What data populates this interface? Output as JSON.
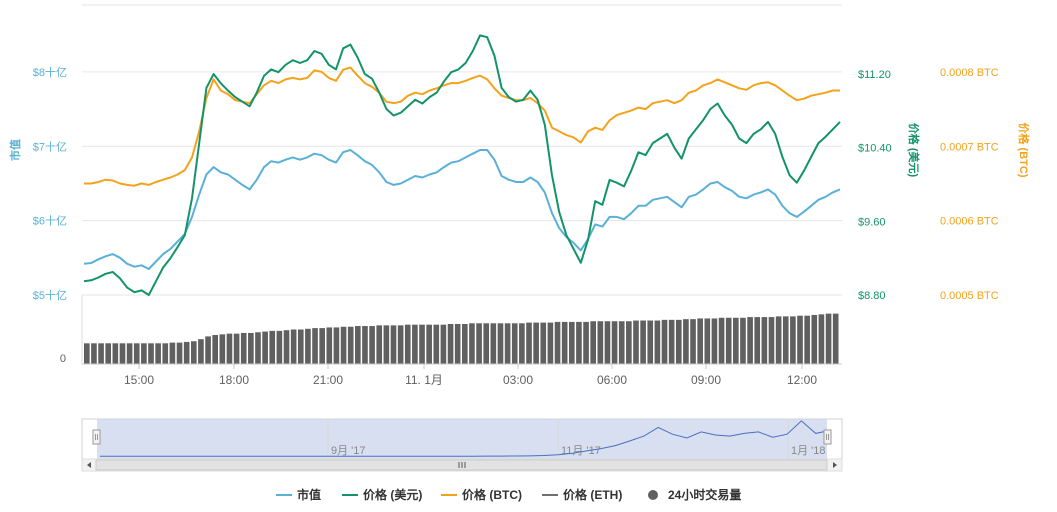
{
  "colors": {
    "market_cap": "#5ab0d6",
    "price_usd": "#13936a",
    "price_btc": "#f4a21b",
    "price_eth": "#707070",
    "volume": "#606060",
    "grid": "#e6e6e6",
    "navigator_fill": "#c9d4ec",
    "navigator_line": "#4a6fc0"
  },
  "chart_data": {
    "type": "line",
    "title": "",
    "x_ticks": [
      "15:00",
      "18:00",
      "21:00",
      "11. 1月",
      "03:00",
      "06:00",
      "09:00",
      "12:00"
    ],
    "axes": {
      "market_cap": {
        "title": "市值",
        "ticks": [
          "$5十亿",
          "$6十亿",
          "$7十亿",
          "$8十亿"
        ],
        "tick_values": [
          5,
          6,
          7,
          8
        ],
        "range": [
          5,
          8.9
        ],
        "unit": "十亿 USD"
      },
      "price_usd": {
        "title": "价格 (美元)",
        "ticks": [
          "$8.80",
          "$9.60",
          "$10.40",
          "$11.20"
        ],
        "tick_values": [
          8.8,
          9.6,
          10.4,
          11.2
        ],
        "range": [
          8.8,
          11.95
        ]
      },
      "price_btc": {
        "title": "价格 (BTC)",
        "ticks": [
          "0.0005 BTC",
          "0.0006 BTC",
          "0.0007 BTC",
          "0.0008 BTC"
        ],
        "tick_values": [
          0.0005,
          0.0006,
          0.0007,
          0.0008
        ],
        "range": [
          0.0005,
          0.00089
        ]
      },
      "volume": {
        "ticks": [
          "0"
        ]
      }
    },
    "series": [
      {
        "name": "市值",
        "key": "market_cap",
        "axis": "market_cap",
        "values": [
          5.42,
          5.43,
          5.48,
          5.52,
          5.55,
          5.5,
          5.42,
          5.38,
          5.4,
          5.35,
          5.45,
          5.55,
          5.62,
          5.72,
          5.82,
          6.05,
          6.35,
          6.62,
          6.72,
          6.65,
          6.62,
          6.55,
          6.48,
          6.42,
          6.55,
          6.72,
          6.8,
          6.78,
          6.82,
          6.85,
          6.82,
          6.85,
          6.9,
          6.88,
          6.82,
          6.78,
          6.92,
          6.95,
          6.88,
          6.8,
          6.75,
          6.65,
          6.52,
          6.48,
          6.5,
          6.55,
          6.6,
          6.58,
          6.62,
          6.65,
          6.72,
          6.78,
          6.8,
          6.85,
          6.9,
          6.95,
          6.95,
          6.82,
          6.6,
          6.55,
          6.52,
          6.52,
          6.58,
          6.52,
          6.38,
          6.1,
          5.9,
          5.78,
          5.7,
          5.6,
          5.75,
          5.95,
          5.92,
          6.05,
          6.05,
          6.02,
          6.1,
          6.2,
          6.2,
          6.28,
          6.3,
          6.32,
          6.25,
          6.18,
          6.32,
          6.35,
          6.42,
          6.5,
          6.52,
          6.45,
          6.4,
          6.32,
          6.3,
          6.35,
          6.38,
          6.42,
          6.35,
          6.2,
          6.1,
          6.05,
          6.12,
          6.2,
          6.28,
          6.32,
          6.38,
          6.42
        ]
      },
      {
        "name": "价格 (美元)",
        "key": "price_usd",
        "axis": "price_usd",
        "values": [
          8.95,
          8.96,
          8.99,
          9.03,
          9.05,
          8.98,
          8.88,
          8.83,
          8.85,
          8.8,
          8.95,
          9.1,
          9.2,
          9.32,
          9.45,
          9.85,
          10.45,
          11.05,
          11.2,
          11.1,
          11.02,
          10.95,
          10.9,
          10.85,
          11.0,
          11.18,
          11.25,
          11.22,
          11.3,
          11.35,
          11.32,
          11.35,
          11.45,
          11.42,
          11.3,
          11.25,
          11.48,
          11.52,
          11.38,
          11.2,
          11.15,
          11.0,
          10.82,
          10.75,
          10.78,
          10.85,
          10.92,
          10.88,
          10.95,
          11.0,
          11.12,
          11.22,
          11.25,
          11.32,
          11.45,
          11.62,
          11.6,
          11.4,
          11.05,
          10.95,
          10.9,
          10.92,
          11.02,
          10.92,
          10.65,
          10.1,
          9.7,
          9.45,
          9.3,
          9.15,
          9.4,
          9.82,
          9.78,
          10.05,
          10.02,
          9.98,
          10.15,
          10.35,
          10.32,
          10.45,
          10.5,
          10.55,
          10.4,
          10.28,
          10.5,
          10.6,
          10.7,
          10.82,
          10.88,
          10.75,
          10.65,
          10.5,
          10.45,
          10.55,
          10.6,
          10.68,
          10.55,
          10.3,
          10.1,
          10.02,
          10.15,
          10.3,
          10.45,
          10.52,
          10.6,
          10.68
        ]
      },
      {
        "name": "价格 (BTC)",
        "key": "price_btc",
        "axis": "price_btc",
        "values": [
          0.00065,
          0.00065,
          0.000652,
          0.000655,
          0.000654,
          0.00065,
          0.000648,
          0.000647,
          0.00065,
          0.000648,
          0.000652,
          0.000655,
          0.000658,
          0.000662,
          0.000668,
          0.000685,
          0.00072,
          0.000765,
          0.00079,
          0.000775,
          0.00077,
          0.000762,
          0.00076,
          0.000758,
          0.00077,
          0.000782,
          0.000788,
          0.000785,
          0.00079,
          0.000792,
          0.00079,
          0.000792,
          0.000802,
          0.0008,
          0.000792,
          0.000788,
          0.000803,
          0.000806,
          0.000795,
          0.000785,
          0.00078,
          0.000772,
          0.00076,
          0.000758,
          0.00076,
          0.000768,
          0.000772,
          0.00077,
          0.000775,
          0.000778,
          0.000782,
          0.000785,
          0.000785,
          0.000788,
          0.000792,
          0.000795,
          0.00079,
          0.000778,
          0.000768,
          0.000765,
          0.000762,
          0.000762,
          0.000765,
          0.000758,
          0.000748,
          0.000725,
          0.00072,
          0.000715,
          0.000712,
          0.000705,
          0.00072,
          0.000725,
          0.000722,
          0.000735,
          0.000742,
          0.000745,
          0.000748,
          0.000752,
          0.00075,
          0.000758,
          0.00076,
          0.000762,
          0.000758,
          0.000762,
          0.000772,
          0.000775,
          0.000782,
          0.000785,
          0.00079,
          0.000786,
          0.000782,
          0.000778,
          0.000776,
          0.000782,
          0.000785,
          0.000786,
          0.000782,
          0.000775,
          0.000768,
          0.000762,
          0.000764,
          0.000768,
          0.00077,
          0.000772,
          0.000775,
          0.000775
        ]
      },
      {
        "name": "价格 (ETH)",
        "key": "price_eth",
        "axis": "none",
        "values": []
      },
      {
        "name": "24小时交易量",
        "key": "volume",
        "axis": "volume",
        "type": "bar",
        "values": [
          0.3,
          0.3,
          0.3,
          0.3,
          0.3,
          0.3,
          0.3,
          0.3,
          0.3,
          0.3,
          0.3,
          0.3,
          0.31,
          0.31,
          0.32,
          0.33,
          0.36,
          0.4,
          0.42,
          0.43,
          0.44,
          0.44,
          0.45,
          0.45,
          0.46,
          0.47,
          0.48,
          0.48,
          0.49,
          0.5,
          0.5,
          0.51,
          0.52,
          0.52,
          0.53,
          0.53,
          0.54,
          0.54,
          0.55,
          0.55,
          0.55,
          0.56,
          0.56,
          0.56,
          0.56,
          0.57,
          0.57,
          0.57,
          0.57,
          0.57,
          0.57,
          0.58,
          0.58,
          0.58,
          0.59,
          0.59,
          0.59,
          0.59,
          0.59,
          0.59,
          0.59,
          0.59,
          0.6,
          0.6,
          0.6,
          0.6,
          0.61,
          0.61,
          0.61,
          0.61,
          0.61,
          0.62,
          0.62,
          0.62,
          0.62,
          0.62,
          0.62,
          0.63,
          0.63,
          0.63,
          0.63,
          0.64,
          0.64,
          0.64,
          0.65,
          0.65,
          0.66,
          0.66,
          0.66,
          0.67,
          0.67,
          0.67,
          0.67,
          0.68,
          0.68,
          0.68,
          0.68,
          0.69,
          0.69,
          0.69,
          0.7,
          0.7,
          0.71,
          0.72,
          0.73,
          0.73
        ]
      }
    ],
    "navigator": {
      "labels": [
        "9月 '17",
        "11月 '17",
        "1月 '18"
      ],
      "values": [
        0.02,
        0.02,
        0.02,
        0.021,
        0.02,
        0.02,
        0.021,
        0.02,
        0.02,
        0.021,
        0.02,
        0.021,
        0.02,
        0.02,
        0.021,
        0.02,
        0.02,
        0.02,
        0.021,
        0.02,
        0.02,
        0.021,
        0.02,
        0.021,
        0.022,
        0.021,
        0.022,
        0.023,
        0.024,
        0.026,
        0.03,
        0.04,
        0.06,
        0.1,
        0.16,
        0.22,
        0.3,
        0.42,
        0.55,
        0.78,
        0.6,
        0.5,
        0.66,
        0.58,
        0.55,
        0.62,
        0.66,
        0.52,
        0.6,
        0.95,
        0.62,
        0.7
      ]
    },
    "legend": {
      "position": "bottom",
      "items": [
        "市值",
        "价格 (美元)",
        "价格 (BTC)",
        "价格 (ETH)",
        "24小时交易量"
      ]
    },
    "grid": true
  }
}
